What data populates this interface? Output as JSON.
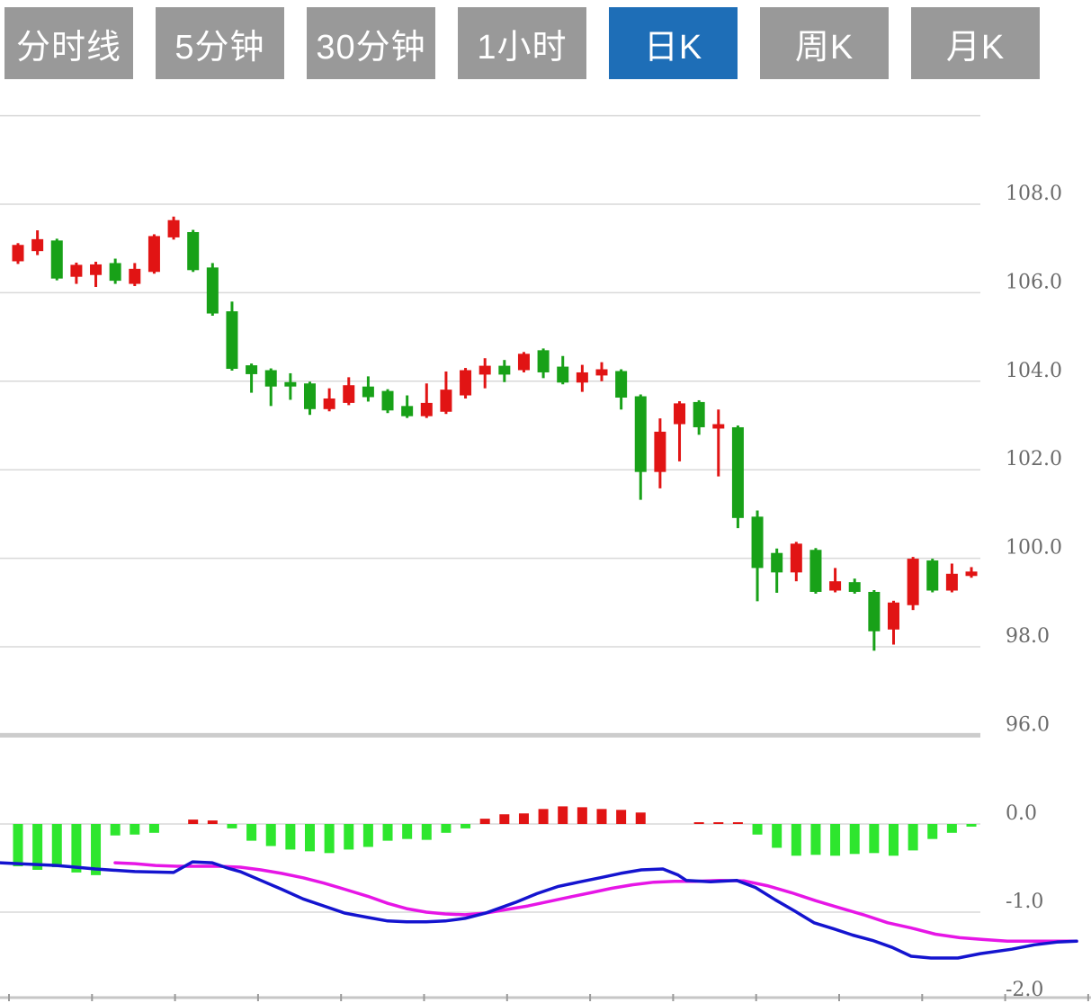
{
  "toolbar": {
    "buttons": [
      {
        "label": "分时线",
        "active": false
      },
      {
        "label": "5分钟",
        "active": false
      },
      {
        "label": "30分钟",
        "active": false
      },
      {
        "label": "1小时",
        "active": false
      },
      {
        "label": "日K",
        "active": true
      },
      {
        "label": "周K",
        "active": false
      },
      {
        "label": "月K",
        "active": false
      }
    ],
    "active_bg": "#1e6eb7",
    "inactive_bg": "#999999"
  },
  "chart_data": {
    "type": "candlestick+macd",
    "title": "",
    "legend_position": "none",
    "grid": true,
    "price_panel": {
      "ylabel": "",
      "ylim": [
        95.8,
        110.2
      ],
      "grid_values": [
        110,
        108,
        106,
        104,
        102,
        100,
        98
      ],
      "baseline_value": 96,
      "y_tick_labels": [
        "108.0",
        "106.0",
        "104.0",
        "102.0",
        "100.0",
        "98.0",
        "96.0"
      ],
      "y_tick_values": [
        108,
        106,
        104,
        102,
        100,
        98,
        96
      ],
      "candles_ohlc": [
        [
          106.71,
          107.12,
          106.65,
          107.08
        ],
        [
          106.94,
          107.41,
          106.85,
          107.21
        ],
        [
          107.18,
          107.22,
          106.28,
          106.32
        ],
        [
          106.36,
          106.68,
          106.2,
          106.63
        ],
        [
          106.4,
          106.7,
          106.13,
          106.64
        ],
        [
          106.67,
          106.77,
          106.2,
          106.27
        ],
        [
          106.2,
          106.67,
          106.15,
          106.54
        ],
        [
          106.47,
          107.32,
          106.43,
          107.28
        ],
        [
          107.25,
          107.72,
          107.2,
          107.64
        ],
        [
          107.37,
          107.42,
          106.47,
          106.51
        ],
        [
          106.57,
          106.67,
          105.48,
          105.53
        ],
        [
          105.58,
          105.8,
          104.24,
          104.28
        ],
        [
          104.36,
          104.4,
          103.74,
          104.16
        ],
        [
          104.25,
          104.29,
          103.44,
          103.88
        ],
        [
          103.98,
          104.18,
          103.58,
          103.88
        ],
        [
          103.95,
          103.99,
          103.24,
          103.37
        ],
        [
          103.37,
          103.84,
          103.32,
          103.61
        ],
        [
          103.51,
          104.09,
          103.46,
          103.91
        ],
        [
          103.88,
          104.11,
          103.54,
          103.64
        ],
        [
          103.78,
          103.82,
          103.28,
          103.34
        ],
        [
          103.44,
          103.68,
          103.17,
          103.21
        ],
        [
          103.21,
          103.95,
          103.17,
          103.51
        ],
        [
          103.31,
          104.22,
          103.26,
          103.81
        ],
        [
          103.68,
          104.3,
          103.61,
          104.25
        ],
        [
          104.15,
          104.52,
          103.84,
          104.35
        ],
        [
          104.35,
          104.48,
          103.98,
          104.15
        ],
        [
          104.25,
          104.66,
          104.2,
          104.62
        ],
        [
          104.7,
          104.74,
          104.07,
          104.2
        ],
        [
          104.33,
          104.57,
          103.93,
          103.97
        ],
        [
          103.97,
          104.37,
          103.76,
          104.2
        ],
        [
          104.13,
          104.43,
          104.0,
          104.27
        ],
        [
          104.23,
          104.27,
          103.36,
          103.63
        ],
        [
          103.66,
          103.7,
          101.32,
          101.95
        ],
        [
          101.95,
          103.16,
          101.58,
          102.86
        ],
        [
          103.03,
          103.55,
          102.19,
          103.5
        ],
        [
          103.53,
          103.57,
          102.79,
          102.96
        ],
        [
          102.93,
          103.36,
          101.85,
          103.03
        ],
        [
          102.96,
          103.0,
          100.68,
          100.91
        ],
        [
          100.94,
          101.08,
          99.03,
          99.78
        ],
        [
          100.12,
          100.22,
          99.22,
          99.68
        ],
        [
          99.68,
          100.37,
          99.48,
          100.33
        ],
        [
          100.19,
          100.23,
          99.2,
          99.24
        ],
        [
          99.27,
          99.78,
          99.23,
          99.48
        ],
        [
          99.46,
          99.54,
          99.2,
          99.24
        ],
        [
          99.24,
          99.28,
          97.91,
          98.35
        ],
        [
          98.39,
          99.04,
          98.05,
          99.0
        ],
        [
          98.94,
          100.03,
          98.83,
          99.99
        ],
        [
          99.95,
          99.99,
          99.23,
          99.27
        ],
        [
          99.27,
          99.88,
          99.23,
          99.65
        ],
        [
          99.6,
          99.8,
          99.56,
          99.7
        ]
      ]
    },
    "macd_panel": {
      "ylim": [
        -2.1,
        0.35
      ],
      "grid_values": [
        0,
        -1
      ],
      "y_tick_labels": [
        "0.0",
        "-1.0",
        "-2.0"
      ],
      "y_tick_values": [
        0,
        -1,
        -2
      ],
      "histogram": [
        -0.48,
        -0.52,
        -0.49,
        -0.55,
        -0.58,
        -0.13,
        -0.12,
        -0.1,
        0,
        0.05,
        0.04,
        -0.05,
        -0.19,
        -0.25,
        -0.29,
        -0.31,
        -0.33,
        -0.29,
        -0.26,
        -0.19,
        -0.17,
        -0.18,
        -0.1,
        -0.05,
        0.06,
        0.11,
        0.12,
        0.17,
        0.2,
        0.19,
        0.17,
        0.16,
        0.13,
        0,
        0,
        0.02,
        0.02,
        0.02,
        -0.12,
        -0.27,
        -0.36,
        -0.35,
        -0.36,
        -0.34,
        -0.33,
        -0.36,
        -0.3,
        -0.17,
        -0.1,
        -0.03
      ],
      "dif_points": [
        [
          0,
          -0.44
        ],
        [
          20,
          -0.45
        ],
        [
          63,
          -0.47
        ],
        [
          106,
          -0.51
        ],
        [
          150,
          -0.54
        ],
        [
          193,
          -0.55
        ],
        [
          214,
          -0.43
        ],
        [
          236,
          -0.44
        ],
        [
          253,
          -0.5
        ],
        [
          267,
          -0.54
        ],
        [
          290,
          -0.64
        ],
        [
          313,
          -0.74
        ],
        [
          337,
          -0.85
        ],
        [
          360,
          -0.93
        ],
        [
          383,
          -1.01
        ],
        [
          409,
          -1.06
        ],
        [
          431,
          -1.1
        ],
        [
          452,
          -1.11
        ],
        [
          474,
          -1.11
        ],
        [
          495,
          -1.1
        ],
        [
          517,
          -1.07
        ],
        [
          540,
          -1.01
        ],
        [
          573,
          -0.89
        ],
        [
          597,
          -0.79
        ],
        [
          620,
          -0.71
        ],
        [
          643,
          -0.66
        ],
        [
          667,
          -0.61
        ],
        [
          690,
          -0.56
        ],
        [
          713,
          -0.52
        ],
        [
          737,
          -0.51
        ],
        [
          754,
          -0.58
        ],
        [
          763,
          -0.64
        ],
        [
          790,
          -0.655
        ],
        [
          819,
          -0.64
        ],
        [
          840,
          -0.72
        ],
        [
          862,
          -0.86
        ],
        [
          884,
          -0.99
        ],
        [
          905,
          -1.12
        ],
        [
          927,
          -1.19
        ],
        [
          948,
          -1.26
        ],
        [
          970,
          -1.32
        ],
        [
          992,
          -1.4
        ],
        [
          1013,
          -1.5
        ],
        [
          1035,
          -1.52
        ],
        [
          1065,
          -1.52
        ],
        [
          1090,
          -1.47
        ],
        [
          1125,
          -1.42
        ],
        [
          1150,
          -1.37
        ],
        [
          1175,
          -1.34
        ],
        [
          1197,
          -1.33
        ]
      ],
      "dea_points": [
        [
          128,
          -0.44
        ],
        [
          150,
          -0.45
        ],
        [
          173,
          -0.47
        ],
        [
          197,
          -0.48
        ],
        [
          220,
          -0.48
        ],
        [
          243,
          -0.48
        ],
        [
          267,
          -0.49
        ],
        [
          290,
          -0.52
        ],
        [
          313,
          -0.56
        ],
        [
          337,
          -0.61
        ],
        [
          360,
          -0.67
        ],
        [
          383,
          -0.74
        ],
        [
          409,
          -0.82
        ],
        [
          431,
          -0.9
        ],
        [
          452,
          -0.96
        ],
        [
          474,
          -1.0
        ],
        [
          495,
          -1.02
        ],
        [
          517,
          -1.03
        ],
        [
          540,
          -1.01
        ],
        [
          563,
          -0.97
        ],
        [
          587,
          -0.93
        ],
        [
          610,
          -0.88
        ],
        [
          633,
          -0.83
        ],
        [
          657,
          -0.78
        ],
        [
          680,
          -0.73
        ],
        [
          703,
          -0.69
        ],
        [
          727,
          -0.66
        ],
        [
          750,
          -0.65
        ],
        [
          773,
          -0.65
        ],
        [
          800,
          -0.64
        ],
        [
          827,
          -0.645
        ],
        [
          853,
          -0.7
        ],
        [
          880,
          -0.78
        ],
        [
          907,
          -0.87
        ],
        [
          933,
          -0.95
        ],
        [
          960,
          -1.03
        ],
        [
          987,
          -1.12
        ],
        [
          1013,
          -1.18
        ],
        [
          1040,
          -1.25
        ],
        [
          1067,
          -1.29
        ],
        [
          1093,
          -1.31
        ],
        [
          1120,
          -1.33
        ],
        [
          1147,
          -1.33
        ],
        [
          1173,
          -1.33
        ],
        [
          1197,
          -1.33
        ]
      ]
    },
    "colors": {
      "up": "#e11414",
      "down": "#18a118",
      "hist_up": "#e11414",
      "hist_down": "#2ee62e",
      "dif_line": "#1414cf",
      "dea_line": "#e616e6",
      "grid": "#d9d9d9",
      "baseline": "#cccccc",
      "bottom_axis": "#c6c6c6",
      "axis_text": "#6b6b6b"
    }
  }
}
